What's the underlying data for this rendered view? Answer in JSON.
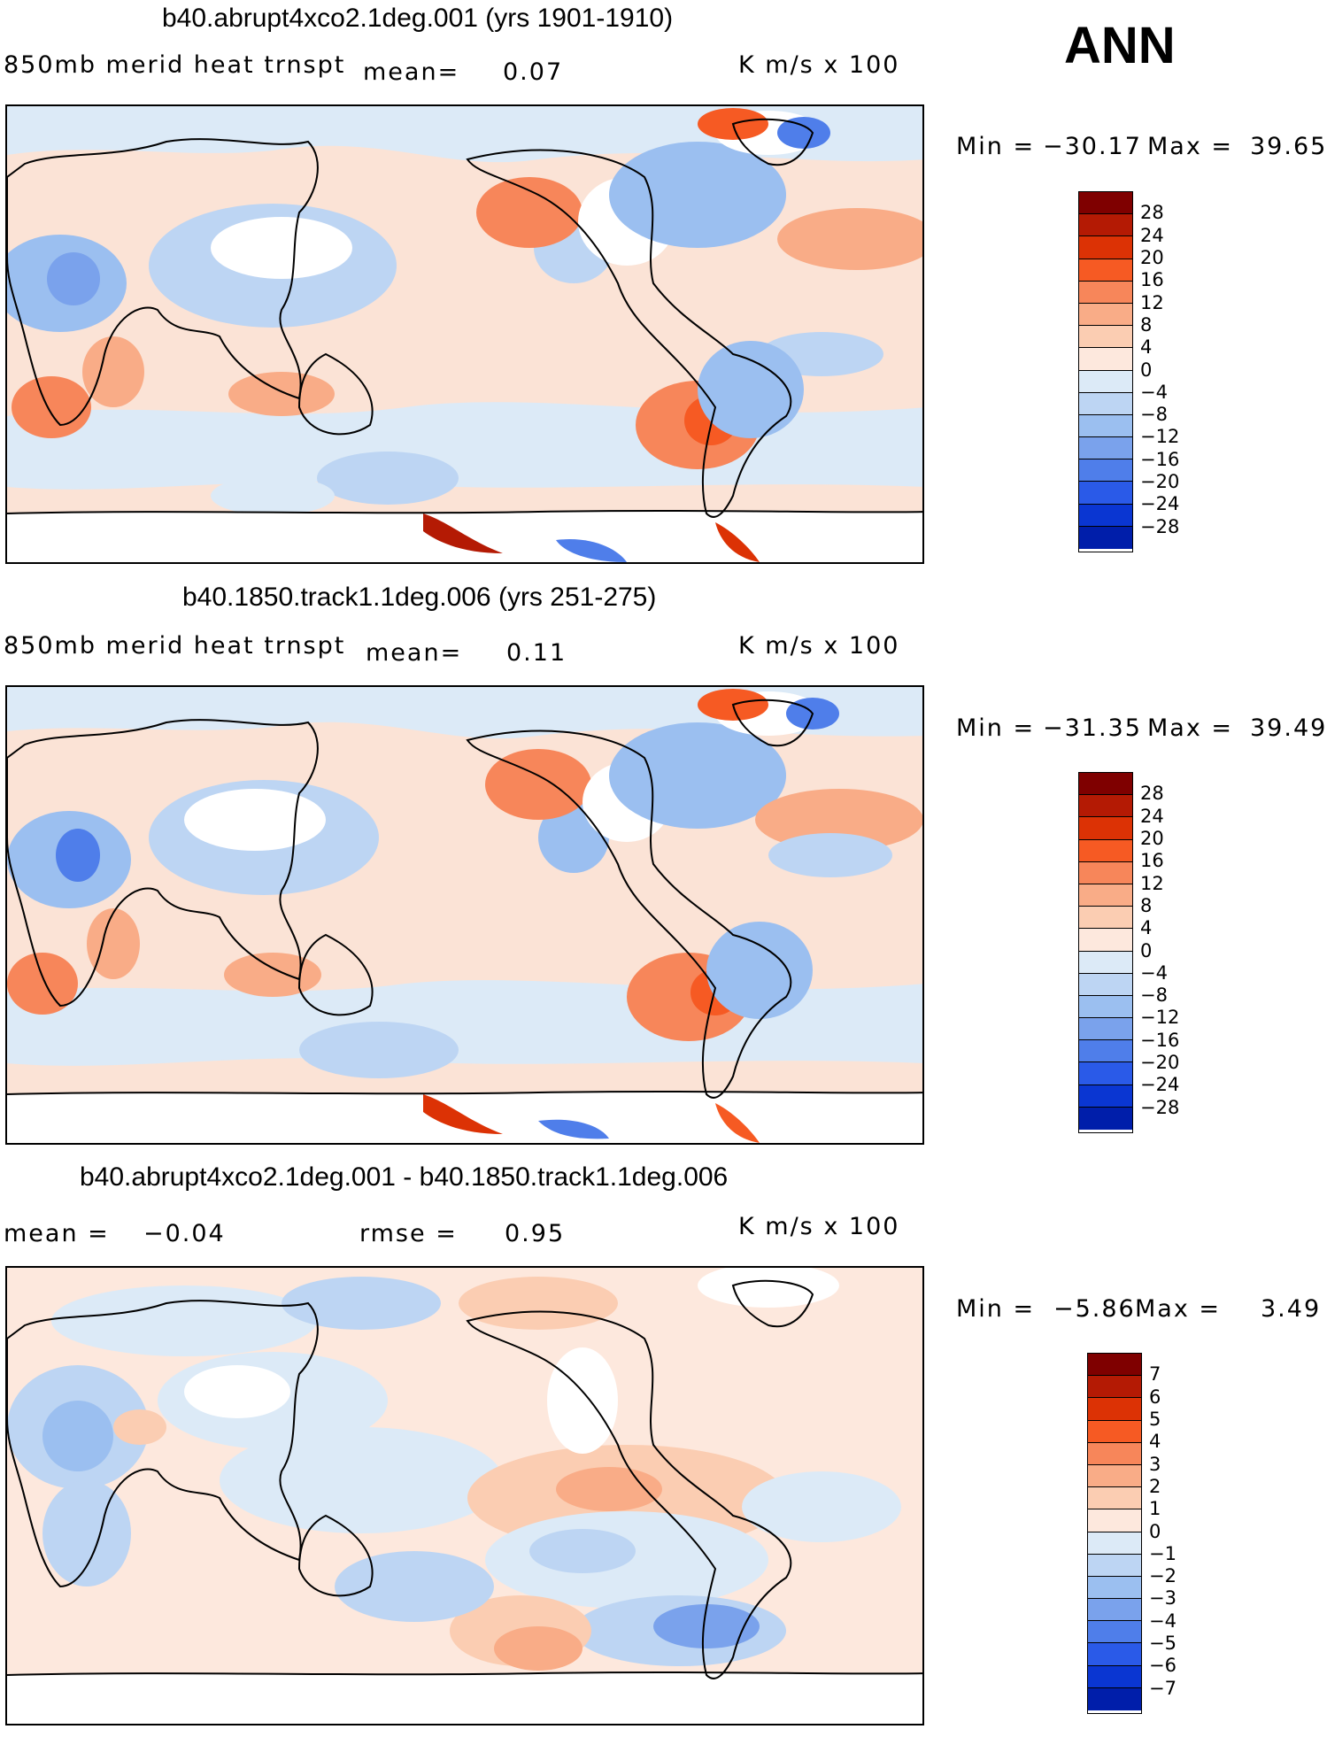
{
  "annual_label": "ANN",
  "colors": {
    "pos": [
      "#7f0000",
      "#b41a04",
      "#dc3205",
      "#f65a23",
      "#f7865a",
      "#f9ac87",
      "#fbcdb2",
      "#fde8dd"
    ],
    "neg": [
      "#dceaf7",
      "#bdd5f3",
      "#9bbff0",
      "#7aa2ec",
      "#4f7eea",
      "#2a5ae8",
      "#0a36d2",
      "#001eaa",
      "#00137a"
    ]
  },
  "panels": [
    {
      "title": "b40.abrupt4xco2.1deg.001 (yrs 1901-1910)",
      "left_label": "850mb  merid  heat  trnspt",
      "mean_label": "mean=",
      "mean_value": "0.07",
      "units": "K  m/s  x  100",
      "min_label": "Min  =",
      "min_value": "−30.17",
      "max_label": "Max  =",
      "max_value": "39.65",
      "levels": [
        "28",
        "24",
        "20",
        "16",
        "12",
        "8",
        "4",
        "0",
        "−4",
        "−8",
        "−12",
        "−16",
        "−20",
        "−24",
        "−28"
      ]
    },
    {
      "title": "b40.1850.track1.1deg.006 (yrs 251-275)",
      "left_label": "850mb  merid  heat  trnspt",
      "mean_label": "mean=",
      "mean_value": "0.11",
      "units": "K  m/s  x  100",
      "min_label": "Min  =",
      "min_value": "−31.35",
      "max_label": "Max  =",
      "max_value": "39.49",
      "levels": [
        "28",
        "24",
        "20",
        "16",
        "12",
        "8",
        "4",
        "0",
        "−4",
        "−8",
        "−12",
        "−16",
        "−20",
        "−24",
        "−28"
      ]
    },
    {
      "title": "b40.abrupt4xco2.1deg.001 - b40.1850.track1.1deg.006",
      "left_label": "mean  =",
      "mean_label": "",
      "mean_value": "−0.04",
      "rmse_label": "rmse  =",
      "rmse_value": "0.95",
      "units": "K  m/s  x  100",
      "min_label": "Min  =",
      "min_value": "−5.86",
      "max_label": "Max  =",
      "max_value": "3.49",
      "levels": [
        "7",
        "6",
        "5",
        "4",
        "3",
        "2",
        "1",
        "0",
        "−1",
        "−2",
        "−3",
        "−4",
        "−5",
        "−6",
        "−7"
      ]
    }
  ],
  "chart_data": {
    "type": "heatmap",
    "variable": "850mb merid heat trnspt",
    "season": "ANN",
    "units": "K m/s x 100",
    "maps": [
      {
        "name": "b40.abrupt4xco2.1deg.001 (yrs 1901-1910)",
        "mean": 0.07,
        "min": -30.17,
        "max": 39.65,
        "contour_levels": [
          -28,
          -24,
          -20,
          -16,
          -12,
          -8,
          -4,
          0,
          4,
          8,
          12,
          16,
          20,
          24,
          28
        ]
      },
      {
        "name": "b40.1850.track1.1deg.006 (yrs 251-275)",
        "mean": 0.11,
        "min": -31.35,
        "max": 39.49,
        "contour_levels": [
          -28,
          -24,
          -20,
          -16,
          -12,
          -8,
          -4,
          0,
          4,
          8,
          12,
          16,
          20,
          24,
          28
        ]
      },
      {
        "name": "b40.abrupt4xco2.1deg.001 - b40.1850.track1.1deg.006",
        "mean": -0.04,
        "rmse": 0.95,
        "min": -5.86,
        "max": 3.49,
        "contour_levels": [
          -7,
          -6,
          -5,
          -4,
          -3,
          -2,
          -1,
          0,
          1,
          2,
          3,
          4,
          5,
          6,
          7
        ]
      }
    ]
  }
}
